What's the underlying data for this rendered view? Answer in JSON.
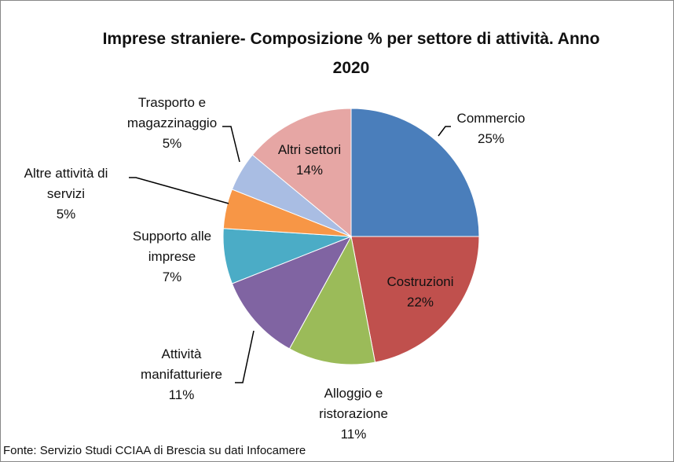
{
  "chart_data": {
    "type": "pie",
    "title": "Imprese straniere- Composizione % per settore di attività. Anno 2020",
    "source": "Fonte: Servizio Studi CCIAA di Brescia  su dati Infocamere",
    "categories": [
      "Commercio",
      "Costruzioni",
      "Alloggio e ristorazione",
      "Attività manifatturiere",
      "Supporto alle imprese",
      "Altre attività di servizi",
      "Trasporto e magazzinaggio",
      "Altri settori"
    ],
    "values": [
      25,
      22,
      11,
      11,
      7,
      5,
      5,
      14
    ],
    "value_labels": [
      "25%",
      "22%",
      "11%",
      "11%",
      "7%",
      "5%",
      "5%",
      "14%"
    ],
    "colors": [
      "#4a7ebb",
      "#c0504d",
      "#9bbb59",
      "#8064a2",
      "#4bacc6",
      "#f79646",
      "#a9bde3",
      "#e6a6a4"
    ]
  }
}
